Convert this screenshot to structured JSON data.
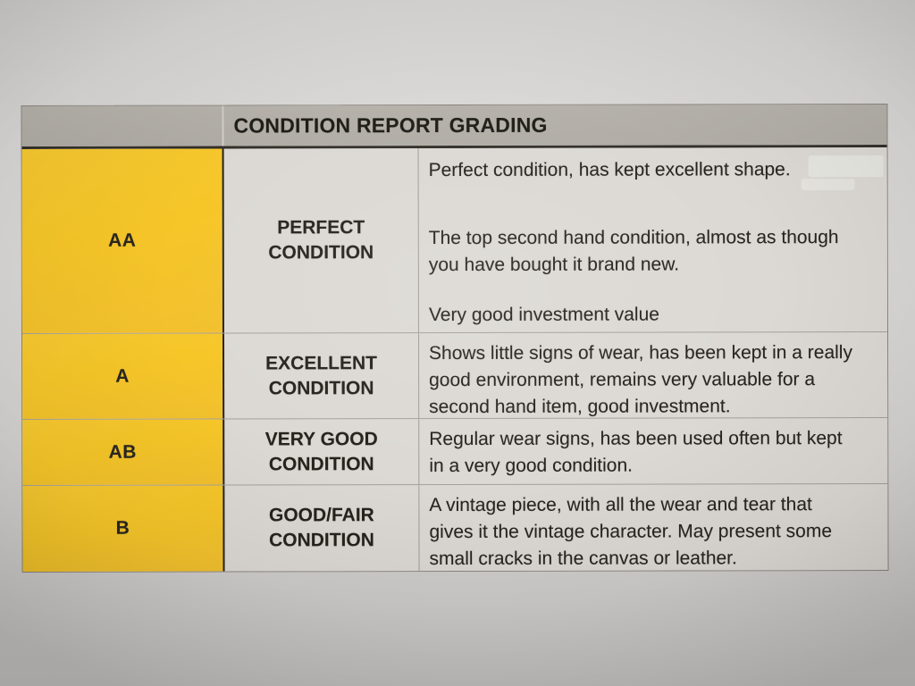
{
  "table": {
    "title": "CONDITION REPORT GRADING",
    "rows": [
      {
        "grade": "AA",
        "label": "PERFECT\nCONDITION",
        "paragraphs": [
          "Perfect condition, has kept excellent shape.",
          "The top second hand condition, almost as though\nyou have bought it brand new.",
          "Very good investment value"
        ]
      },
      {
        "grade": "A",
        "label": "EXCELLENT\nCONDITION",
        "paragraphs": [
          "Shows little signs of wear, has been kept in a really\ngood environment, remains very valuable for a\nsecond hand item, good investment."
        ]
      },
      {
        "grade": "AB",
        "label": "VERY GOOD\nCONDITION",
        "paragraphs": [
          "Regular wear signs, has been used often but kept\nin a very good condition."
        ]
      },
      {
        "grade": "B",
        "label": "GOOD/FAIR\nCONDITION",
        "paragraphs": [
          "A vintage piece, with all the wear and tear that\ngives it the vintage character. May present some\nsmall cracks in the canvas or leather."
        ]
      }
    ],
    "colors": {
      "grade_column_bg": "#f6c628",
      "header_bg": "#b3afa8",
      "cell_bg": "#dcd9d4",
      "paper_bg": "#d6d4d2",
      "text": "#24221d"
    }
  }
}
